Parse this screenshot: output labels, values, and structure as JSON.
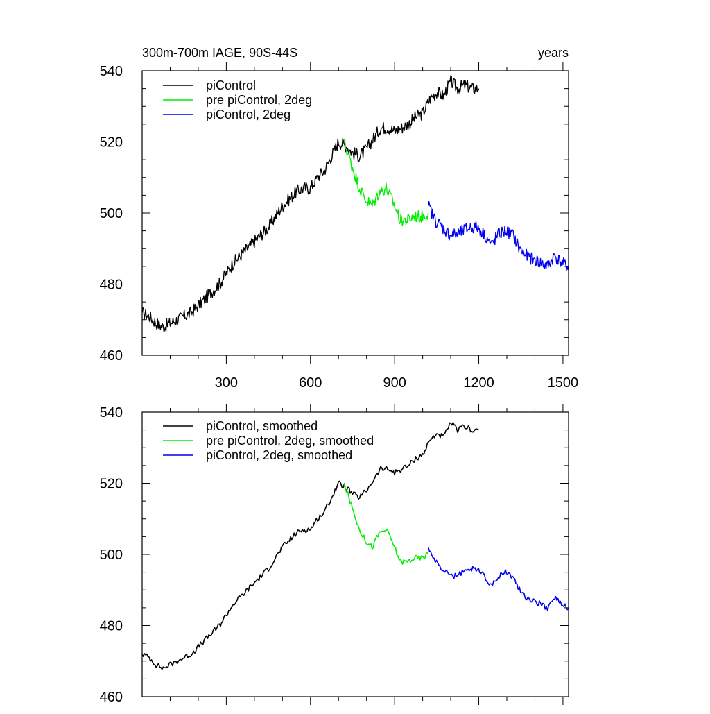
{
  "chart_data": [
    {
      "type": "line",
      "panel": "raw",
      "title_left": "300m-700m IAGE, 90S-44S",
      "title_right": "years",
      "xlim": [
        0,
        1520
      ],
      "ylim": [
        460,
        540
      ],
      "xticks": [
        300,
        600,
        900,
        1200,
        1500
      ],
      "yticks": [
        460,
        480,
        500,
        520,
        540
      ],
      "legend_position": "top-left",
      "series": [
        {
          "name": "piControl",
          "color": "#000000",
          "x": [
            0,
            25,
            50,
            75,
            100,
            125,
            150,
            175,
            200,
            225,
            250,
            275,
            300,
            325,
            350,
            375,
            400,
            425,
            450,
            475,
            500,
            525,
            550,
            575,
            600,
            625,
            650,
            675,
            700,
            725,
            750,
            775,
            800,
            825,
            850,
            875,
            900,
            925,
            950,
            975,
            1000,
            1025,
            1050,
            1075,
            1100,
            1125,
            1150,
            1175,
            1200
          ],
          "values": [
            472,
            471,
            469,
            468,
            469,
            470,
            471,
            472,
            474,
            476,
            478,
            480,
            483,
            486,
            488,
            490,
            492,
            494,
            496,
            499,
            502,
            504,
            506,
            507,
            507,
            510,
            512,
            516,
            520,
            519,
            517,
            516,
            518,
            521,
            524,
            524,
            523,
            524,
            525,
            527,
            528,
            532,
            534,
            533,
            537,
            535,
            536,
            535,
            535
          ]
        },
        {
          "name": "pre piControl, 2deg",
          "color": "#00ee00",
          "x": [
            720,
            745,
            770,
            795,
            820,
            845,
            870,
            895,
            920,
            945,
            970,
            995,
            1020
          ],
          "values": [
            520,
            514,
            508,
            504,
            502,
            506,
            507,
            503,
            498,
            498,
            499,
            499,
            500
          ]
        },
        {
          "name": "piControl, 2deg",
          "color": "#0000ee",
          "x": [
            1020,
            1045,
            1070,
            1095,
            1120,
            1145,
            1170,
            1195,
            1220,
            1245,
            1270,
            1295,
            1320,
            1345,
            1370,
            1395,
            1420,
            1445,
            1470,
            1495,
            1520
          ],
          "values": [
            502,
            498,
            496,
            494,
            494,
            495,
            496,
            496,
            494,
            491,
            494,
            495,
            494,
            490,
            488,
            487,
            486,
            485,
            488,
            486,
            485
          ]
        }
      ]
    },
    {
      "type": "line",
      "panel": "smoothed",
      "xlim": [
        0,
        1520
      ],
      "ylim": [
        460,
        540
      ],
      "yticks": [
        460,
        480,
        500,
        520,
        540
      ],
      "legend_position": "top-left",
      "series": [
        {
          "name": "piControl, smoothed",
          "color": "#000000",
          "x": [
            0,
            25,
            50,
            75,
            100,
            125,
            150,
            175,
            200,
            225,
            250,
            275,
            300,
            325,
            350,
            375,
            400,
            425,
            450,
            475,
            500,
            525,
            550,
            575,
            600,
            625,
            650,
            675,
            700,
            725,
            750,
            775,
            800,
            825,
            850,
            875,
            900,
            925,
            950,
            975,
            1000,
            1025,
            1050,
            1075,
            1100,
            1125,
            1150,
            1175,
            1200
          ],
          "values": [
            472,
            471,
            469,
            468,
            469,
            470,
            471,
            472,
            474,
            476,
            478,
            480,
            483,
            486,
            488,
            490,
            492,
            494,
            496,
            499,
            502,
            504,
            506,
            507,
            507,
            510,
            512,
            516,
            520,
            519,
            517,
            516,
            518,
            521,
            524,
            524,
            523,
            524,
            525,
            527,
            528,
            532,
            534,
            533,
            537,
            535,
            536,
            535,
            535
          ]
        },
        {
          "name": "pre piControl, 2deg, smoothed",
          "color": "#00ee00",
          "x": [
            720,
            745,
            770,
            795,
            820,
            845,
            870,
            895,
            920,
            945,
            970,
            995,
            1020
          ],
          "values": [
            520,
            514,
            508,
            504,
            502,
            506,
            507,
            503,
            498,
            498,
            499,
            499,
            500
          ]
        },
        {
          "name": "piControl, 2deg, smoothed",
          "color": "#0000ee",
          "x": [
            1020,
            1045,
            1070,
            1095,
            1120,
            1145,
            1170,
            1195,
            1220,
            1245,
            1270,
            1295,
            1320,
            1345,
            1370,
            1395,
            1420,
            1445,
            1470,
            1495,
            1520
          ],
          "values": [
            502,
            498,
            496,
            494,
            494,
            495,
            496,
            496,
            494,
            491,
            494,
            495,
            494,
            490,
            488,
            487,
            486,
            485,
            488,
            486,
            485
          ]
        }
      ]
    }
  ]
}
